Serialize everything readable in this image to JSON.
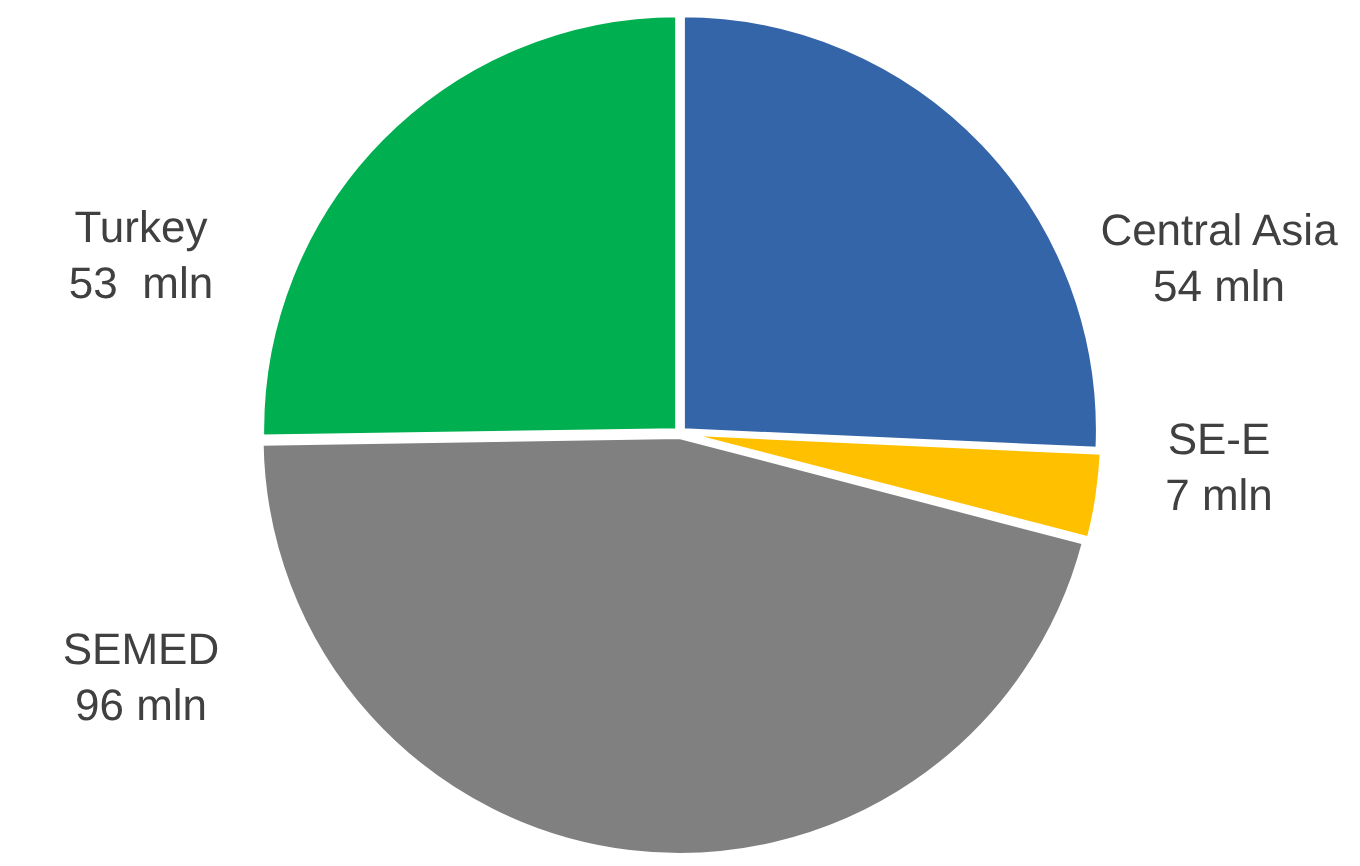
{
  "chart_data": {
    "type": "pie",
    "categories": [
      "Central Asia",
      "SE-E",
      "SEMED",
      "Turkey"
    ],
    "values": [
      54,
      7,
      96,
      53
    ],
    "value_labels": [
      "54 mln",
      "7 mln",
      "96 mln",
      "53  mln"
    ],
    "colors": [
      "#3465a9",
      "#ffc000",
      "#808080",
      "#00b050"
    ],
    "legend": false
  }
}
